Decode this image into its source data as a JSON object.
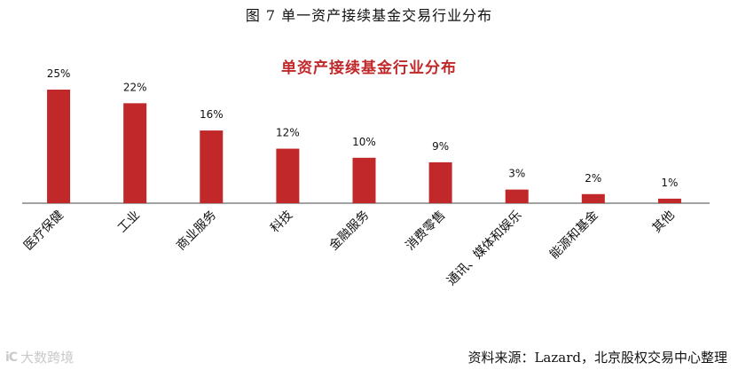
{
  "figure_title": "图 7 单一资产接续基金交易行业分布",
  "source": "资料来源：Lazard，北京股权交易中心整理",
  "watermark": {
    "logo": "iC",
    "text": "大数跨境"
  },
  "colors": {
    "bar": "#c0282a",
    "title": "#c0282a",
    "axis": "#444444"
  },
  "chart_data": {
    "type": "bar",
    "title": "单资产接续基金行业分布",
    "categories": [
      "医疗保健",
      "工业",
      "商业服务",
      "科技",
      "金融服务",
      "消费零售",
      "通讯、媒体和娱乐",
      "能源和基金",
      "其他"
    ],
    "values": [
      25,
      22,
      16,
      12,
      10,
      9,
      3,
      2,
      1
    ],
    "value_labels": [
      "25%",
      "22%",
      "16%",
      "12%",
      "10%",
      "9%",
      "3%",
      "2%",
      "1%"
    ],
    "unit": "%",
    "ylim": [
      0,
      25
    ],
    "grid": false,
    "legend": "none"
  }
}
